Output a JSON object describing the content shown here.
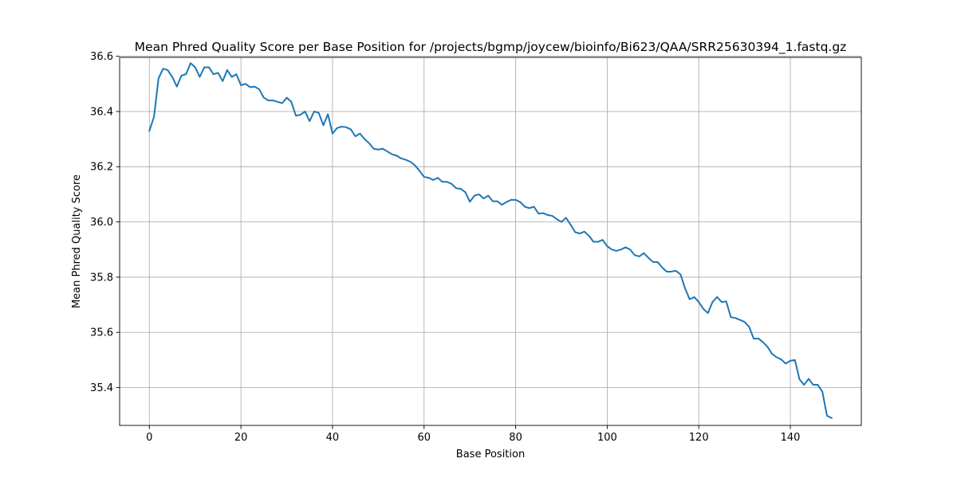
{
  "chart_data": {
    "type": "line",
    "title": "Mean Phred Quality Score per Base Position for /projects/bgmp/joycew/bioinfo/Bi623/QAA/SRR25630394_1.fastq.gz",
    "xlabel": "Base Position",
    "ylabel": "Mean Phred Quality Score",
    "xlim": [
      -6.5,
      155.5
    ],
    "ylim": [
      35.263,
      36.596
    ],
    "xticks": [
      0,
      20,
      40,
      60,
      80,
      100,
      120,
      140
    ],
    "xtick_labels": [
      "0",
      "20",
      "40",
      "60",
      "80",
      "100",
      "120",
      "140"
    ],
    "yticks": [
      35.4,
      35.6,
      35.8,
      36.0,
      36.2,
      36.4,
      36.6
    ],
    "ytick_labels": [
      "35.4",
      "35.6",
      "35.8",
      "36.0",
      "36.2",
      "36.4",
      "36.6"
    ],
    "grid": true,
    "line_color": "#1f77b4",
    "series": [
      {
        "x": [
          0,
          1,
          2,
          3,
          4,
          5,
          6,
          7,
          8,
          9,
          10,
          11,
          12,
          13,
          14,
          15,
          16,
          17,
          18,
          19,
          20,
          21,
          22,
          23,
          24,
          25,
          26,
          27,
          28,
          29,
          30,
          31,
          32,
          33,
          34,
          35,
          36,
          37,
          38,
          39,
          40,
          41,
          42,
          43,
          44,
          45,
          46,
          47,
          48,
          49,
          50,
          51,
          52,
          53,
          54,
          55,
          56,
          57,
          58,
          59,
          60,
          61,
          62,
          63,
          64,
          65,
          66,
          67,
          68,
          69,
          70,
          71,
          72,
          73,
          74,
          75,
          76,
          77,
          78,
          79,
          80,
          81,
          82,
          83,
          84,
          85,
          86,
          87,
          88,
          89,
          90,
          91,
          92,
          93,
          94,
          95,
          96,
          97,
          98,
          99,
          100,
          101,
          102,
          103,
          104,
          105,
          106,
          107,
          108,
          109,
          110,
          111,
          112,
          113,
          114,
          115,
          116,
          117,
          118,
          119,
          120,
          121,
          122,
          123,
          124,
          125,
          126,
          127,
          128,
          129,
          130,
          131,
          132,
          133,
          134,
          135,
          136,
          137,
          138,
          139,
          140,
          141,
          142,
          143,
          144,
          145,
          146,
          147,
          148,
          149
        ],
        "values": [
          36.33,
          36.38,
          36.52,
          36.555,
          36.55,
          36.525,
          36.49,
          36.53,
          36.535,
          36.575,
          36.56,
          36.525,
          36.56,
          36.56,
          36.535,
          36.54,
          36.51,
          36.55,
          36.525,
          36.535,
          36.495,
          36.5,
          36.488,
          36.49,
          36.48,
          36.45,
          36.44,
          36.44,
          36.435,
          36.43,
          36.45,
          36.435,
          36.385,
          36.388,
          36.4,
          36.365,
          36.4,
          36.395,
          36.35,
          36.39,
          36.32,
          36.34,
          36.345,
          36.343,
          36.335,
          36.31,
          36.32,
          36.3,
          36.285,
          36.265,
          36.262,
          36.265,
          36.255,
          36.245,
          36.24,
          36.23,
          36.225,
          36.218,
          36.205,
          36.185,
          36.163,
          36.16,
          36.152,
          36.16,
          36.145,
          36.145,
          36.138,
          36.122,
          36.12,
          36.108,
          36.073,
          36.095,
          36.1,
          36.085,
          36.095,
          36.075,
          36.075,
          36.062,
          36.072,
          36.08,
          36.08,
          36.072,
          36.055,
          36.05,
          36.055,
          36.03,
          36.032,
          36.025,
          36.022,
          36.01,
          36.0,
          36.015,
          35.99,
          35.963,
          35.958,
          35.965,
          35.95,
          35.928,
          35.928,
          35.935,
          35.912,
          35.9,
          35.895,
          35.9,
          35.908,
          35.9,
          35.88,
          35.875,
          35.887,
          35.87,
          35.855,
          35.855,
          35.835,
          35.82,
          35.82,
          35.823,
          35.81,
          35.76,
          35.72,
          35.728,
          35.71,
          35.685,
          35.67,
          35.71,
          35.728,
          35.71,
          35.712,
          35.655,
          35.652,
          35.645,
          35.638,
          35.62,
          35.577,
          35.578,
          35.565,
          35.548,
          35.522,
          35.51,
          35.502,
          35.487,
          35.497,
          35.5,
          35.43,
          35.41,
          35.432,
          35.41,
          35.41,
          35.385,
          35.298,
          35.29
        ]
      }
    ]
  }
}
